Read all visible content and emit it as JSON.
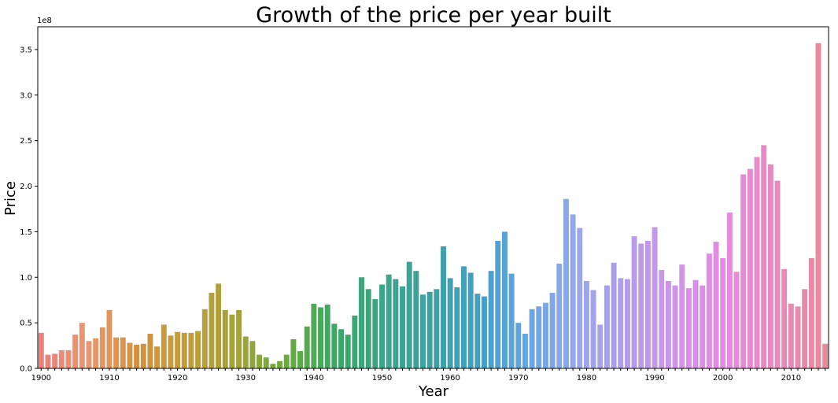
{
  "chart_data": {
    "type": "bar",
    "title": "Growth of the price per year built",
    "xlabel": "Year",
    "ylabel": "Price",
    "y_offset_label": "1e8",
    "ylim": [
      0,
      3.75
    ],
    "y_ticks": [
      0.0,
      0.5,
      1.0,
      1.5,
      2.0,
      2.5,
      3.0,
      3.5
    ],
    "y_tick_labels": [
      "0.0",
      "0.5",
      "1.0",
      "1.5",
      "2.0",
      "2.5",
      "3.0",
      "3.5"
    ],
    "x_tick_labels": [
      "1900",
      "1910",
      "1920",
      "1930",
      "1940",
      "1950",
      "1960",
      "1970",
      "1980",
      "1990",
      "2000",
      "2010"
    ],
    "grid": false,
    "legend": "none",
    "value_units": "1e8",
    "categories": [
      1900,
      1901,
      1902,
      1903,
      1904,
      1905,
      1906,
      1907,
      1908,
      1909,
      1910,
      1911,
      1912,
      1913,
      1914,
      1915,
      1916,
      1917,
      1918,
      1919,
      1920,
      1921,
      1922,
      1923,
      1924,
      1925,
      1926,
      1927,
      1928,
      1929,
      1930,
      1931,
      1932,
      1933,
      1934,
      1935,
      1936,
      1937,
      1938,
      1939,
      1940,
      1941,
      1942,
      1943,
      1944,
      1945,
      1946,
      1947,
      1948,
      1949,
      1950,
      1951,
      1952,
      1953,
      1954,
      1955,
      1956,
      1957,
      1958,
      1959,
      1960,
      1961,
      1962,
      1963,
      1964,
      1965,
      1966,
      1967,
      1968,
      1969,
      1970,
      1971,
      1972,
      1973,
      1974,
      1975,
      1976,
      1977,
      1978,
      1979,
      1980,
      1981,
      1982,
      1983,
      1984,
      1985,
      1986,
      1987,
      1988,
      1989,
      1990,
      1991,
      1992,
      1993,
      1994,
      1995,
      1996,
      1997,
      1998,
      1999,
      2000,
      2001,
      2002,
      2003,
      2004,
      2005,
      2006,
      2007,
      2008,
      2009,
      2010,
      2011,
      2012,
      2013,
      2014,
      2015
    ],
    "values": [
      0.39,
      0.15,
      0.16,
      0.2,
      0.2,
      0.37,
      0.5,
      0.3,
      0.33,
      0.45,
      0.64,
      0.34,
      0.34,
      0.28,
      0.26,
      0.27,
      0.38,
      0.24,
      0.48,
      0.36,
      0.4,
      0.39,
      0.39,
      0.41,
      0.65,
      0.83,
      0.93,
      0.64,
      0.59,
      0.64,
      0.35,
      0.3,
      0.15,
      0.12,
      0.05,
      0.08,
      0.15,
      0.32,
      0.19,
      0.46,
      0.71,
      0.67,
      0.7,
      0.49,
      0.43,
      0.37,
      0.58,
      1.0,
      0.87,
      0.76,
      0.92,
      1.03,
      0.98,
      0.9,
      1.17,
      1.07,
      0.81,
      0.84,
      0.87,
      1.34,
      0.99,
      0.89,
      1.12,
      1.05,
      0.82,
      0.79,
      1.07,
      1.4,
      1.5,
      1.04,
      0.5,
      0.38,
      0.65,
      0.68,
      0.72,
      0.83,
      1.15,
      1.86,
      1.69,
      1.54,
      0.96,
      0.86,
      0.48,
      0.91,
      1.16,
      0.99,
      0.98,
      1.45,
      1.37,
      1.4,
      1.55,
      1.08,
      0.96,
      0.91,
      1.14,
      0.88,
      0.97,
      0.91,
      1.26,
      1.39,
      1.21,
      1.71,
      1.06,
      2.13,
      2.19,
      2.32,
      2.45,
      2.24,
      2.06,
      1.09,
      0.71,
      0.68,
      0.87,
      1.21,
      3.57,
      0.27
    ],
    "colors": [
      "#e9817b",
      "#e99870",
      "#d2913d",
      "#c29e3d",
      "#a3a23a",
      "#67ad3c",
      "#3aa866",
      "#3ca58a",
      "#3ea1a3",
      "#43a0c8",
      "#6aa6e4",
      "#9aa7eb",
      "#b49cea",
      "#d194e9",
      "#e68ae0",
      "#e88abc",
      "#e9899c"
    ]
  }
}
